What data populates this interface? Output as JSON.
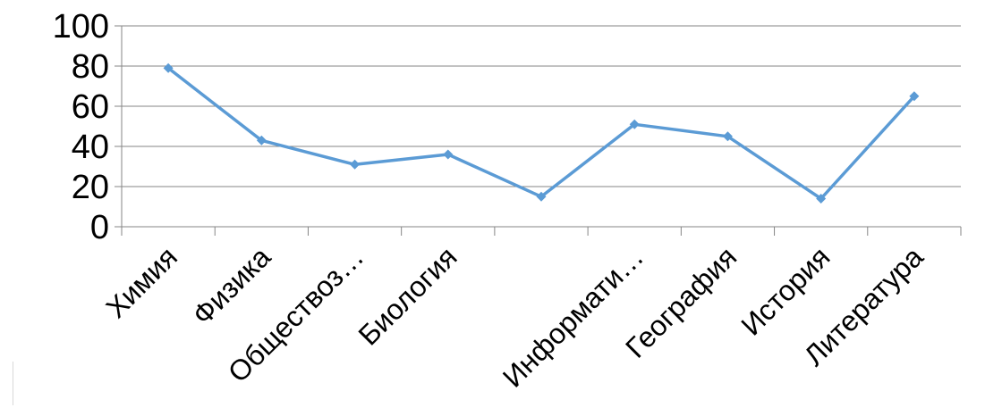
{
  "chart_data": {
    "type": "line",
    "title": "",
    "xlabel": "",
    "ylabel": "",
    "categories": [
      "Химия",
      "Физика",
      "Обществоз…",
      "Биология",
      "",
      "Информати…",
      "География",
      "История",
      "Литература"
    ],
    "series": [
      {
        "values": [
          79,
          43,
          31,
          36,
          15,
          51,
          45,
          14,
          65
        ]
      }
    ],
    "ylim": [
      0,
      100
    ],
    "yticks": [
      0,
      20,
      40,
      60,
      80,
      100
    ],
    "grid": "horizontal",
    "legend": "none",
    "colors": {
      "series": "#5B9BD5",
      "grid": "#868686",
      "axis": "#868686",
      "text": "#000000"
    }
  }
}
